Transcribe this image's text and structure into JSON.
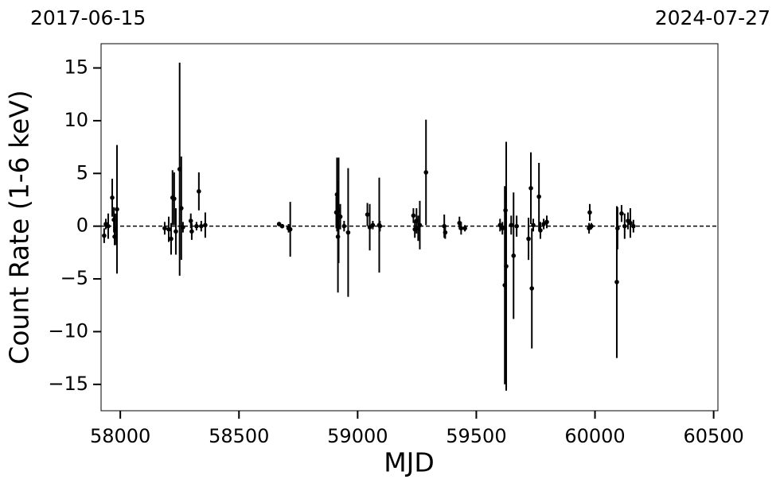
{
  "chart_data": {
    "type": "errorbar",
    "annotations": [
      "2017-06-15",
      "2024-07-27"
    ],
    "x_label": "MJD",
    "y_label": "Count Rate (1-6 keV)",
    "color": "#000000",
    "reference_line": 0,
    "x": [
      57932,
      57939,
      57949,
      57966,
      57973,
      57976,
      57979,
      57986,
      58187,
      58204,
      58214,
      58220,
      58227,
      58234,
      58250,
      58257,
      58264,
      58297,
      58301,
      58321,
      58331,
      58341,
      58358,
      58669,
      58682,
      58709,
      58716,
      58910,
      58913,
      58917,
      58920,
      58927,
      58943,
      58960,
      59041,
      59051,
      59064,
      59091,
      59094,
      59235,
      59241,
      59248,
      59255,
      59262,
      59288,
      59365,
      59369,
      59429,
      59436,
      59452,
      59600,
      59610,
      59620,
      59623,
      59626,
      59647,
      59657,
      59670,
      59720,
      59730,
      59734,
      59740,
      59764,
      59770,
      59784,
      59797,
      59975,
      59978,
      59985,
      60092,
      60095,
      60112,
      60125,
      60139,
      60149,
      60162
    ],
    "values": [
      -0.9,
      0.2,
      0,
      2.7,
      0.6,
      -1.0,
      -0.3,
      1.6,
      -0.2,
      -0.3,
      -1.2,
      2.7,
      2.6,
      -0.5,
      5.4,
      1.7,
      -0.1,
      0.5,
      -0.5,
      0,
      3.3,
      0,
      0.1,
      0.2,
      0,
      -0.2,
      -0.3,
      1.3,
      3.0,
      -1.0,
      1.5,
      0.9,
      0,
      -0.6,
      1.1,
      -0.1,
      0.1,
      0.1,
      0,
      1.0,
      -0.3,
      0.5,
      -0.2,
      0.1,
      5.1,
      0,
      -0.6,
      0.3,
      -0.2,
      -0.2,
      0.1,
      -0.2,
      -5.6,
      1.5,
      -3.8,
      0.1,
      -2.8,
      0,
      -1.2,
      3.6,
      -5.9,
      0.1,
      2.8,
      -0.4,
      0.2,
      0.4,
      -0.2,
      1.3,
      0,
      -5.3,
      -0.2,
      1.2,
      0,
      0.5,
      0.3,
      0
    ],
    "errors": [
      0.7,
      0.5,
      1.2,
      1.8,
      1.2,
      0.8,
      1.5,
      6.1,
      0.6,
      1.2,
      1.5,
      2.6,
      2.5,
      2.2,
      10.1,
      4.9,
      0.5,
      0.7,
      0.8,
      0.4,
      1.8,
      0.5,
      1.2,
      0.2,
      0.2,
      0.4,
      2.6,
      1.5,
      3.5,
      5.3,
      5,
      1.2,
      0.5,
      6.1,
      1.1,
      2.2,
      0.4,
      4.5,
      0.5,
      0.7,
      0.8,
      1.2,
      1.2,
      2.3,
      5.0,
      1.1,
      0.6,
      0.6,
      0.6,
      0.3,
      0.6,
      0.6,
      9.4,
      2.2,
      11.8,
      0.9,
      6,
      1,
      2,
      3.4,
      5.7,
      0.6,
      3.2,
      0.8,
      0.5,
      0.6,
      0.5,
      0.8,
      0.3,
      7.2,
      2,
      0.8,
      1.2,
      0.8,
      1.4,
      0.6
    ],
    "xlim": [
      57919,
      60518
    ],
    "ylim": [
      -17.5,
      17.3
    ],
    "xticks": [
      58000,
      58500,
      59000,
      59500,
      60000,
      60500
    ],
    "yticks": [
      {
        "value": -15,
        "label": "−15"
      },
      {
        "value": -10,
        "label": "−10"
      },
      {
        "value": -5,
        "label": "−5"
      },
      0,
      5,
      10,
      15
    ]
  }
}
